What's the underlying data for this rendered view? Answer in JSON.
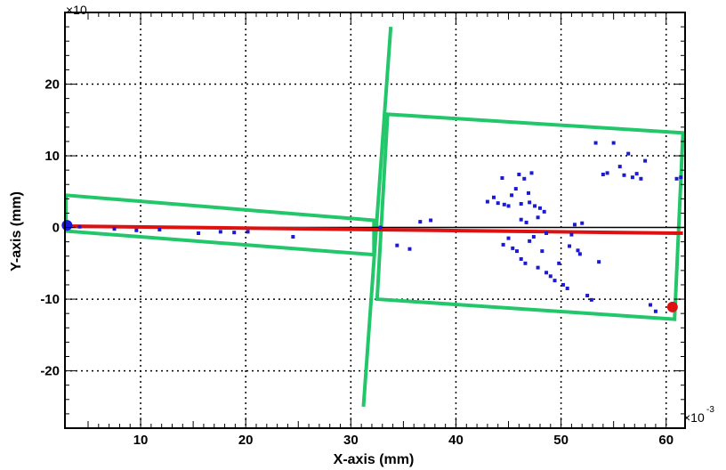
{
  "chart_data": {
    "type": "scatter",
    "xlabel": "X-axis (mm)",
    "ylabel": "Y-axis (mm)",
    "x_multiplier_label": "×10",
    "x_multiplier_exp": "-3",
    "y_multiplier_label": "×10",
    "xlim": [
      2.8,
      61.8
    ],
    "ylim": [
      -28.0,
      30.0
    ],
    "x_ticks": [
      10,
      20,
      30,
      40,
      50,
      60
    ],
    "y_ticks": [
      20,
      10,
      0,
      -10,
      -20
    ],
    "grid": true,
    "colors": {
      "points": "#1a1ad4",
      "track": "#dd1111",
      "baseline": "#000000",
      "detector": "#22c76a",
      "start_marker": "#1a1ad4",
      "end_marker": "#dd1111"
    },
    "baseline": {
      "y": 0
    },
    "track_line": {
      "x": [
        2.8,
        61.6
      ],
      "y": [
        0.2,
        -0.8
      ]
    },
    "start_point": {
      "x": 3.0,
      "y": 0.3
    },
    "end_point": {
      "x": 60.6,
      "y": -11.1
    },
    "detector_boxes": [
      {
        "x": [
          2.9,
          32.2,
          32.2,
          2.9
        ],
        "y": [
          4.5,
          1.0,
          -3.8,
          -0.5
        ]
      },
      {
        "x": [
          33.5,
          61.6,
          60.8,
          32.5
        ],
        "y": [
          15.8,
          13.2,
          -12.8,
          -10.0
        ]
      }
    ],
    "detector_plane": {
      "x": [
        33.8,
        31.2
      ],
      "y": [
        28.0,
        -25.0
      ]
    },
    "points": [
      [
        3.0,
        0.4
      ],
      [
        4.2,
        0.1
      ],
      [
        7.5,
        -0.2
      ],
      [
        9.6,
        -0.4
      ],
      [
        11.8,
        -0.3
      ],
      [
        15.5,
        -0.8
      ],
      [
        17.6,
        -0.6
      ],
      [
        18.9,
        -0.7
      ],
      [
        20.2,
        -0.6
      ],
      [
        24.5,
        -1.3
      ],
      [
        32.8,
        0.0
      ],
      [
        34.4,
        -2.5
      ],
      [
        35.6,
        -3.0
      ],
      [
        36.6,
        0.8
      ],
      [
        37.6,
        1.0
      ],
      [
        43.0,
        3.6
      ],
      [
        43.6,
        4.2
      ],
      [
        44.0,
        3.4
      ],
      [
        44.4,
        6.9
      ],
      [
        44.6,
        3.2
      ],
      [
        45.0,
        3.0
      ],
      [
        45.3,
        4.5
      ],
      [
        45.7,
        5.4
      ],
      [
        46.0,
        7.4
      ],
      [
        46.2,
        1.1
      ],
      [
        46.2,
        3.3
      ],
      [
        46.5,
        6.8
      ],
      [
        46.7,
        0.7
      ],
      [
        46.9,
        4.8
      ],
      [
        47.0,
        3.5
      ],
      [
        47.2,
        7.6
      ],
      [
        47.5,
        3.0
      ],
      [
        47.8,
        1.4
      ],
      [
        48.0,
        2.7
      ],
      [
        48.4,
        2.2
      ],
      [
        48.6,
        -0.8
      ],
      [
        44.5,
        -2.4
      ],
      [
        45.0,
        -1.5
      ],
      [
        45.4,
        -2.9
      ],
      [
        45.8,
        -3.3
      ],
      [
        46.2,
        -4.4
      ],
      [
        46.6,
        -5.0
      ],
      [
        47.0,
        -1.9
      ],
      [
        47.4,
        -1.3
      ],
      [
        47.8,
        -5.6
      ],
      [
        48.2,
        -3.3
      ],
      [
        48.6,
        -6.3
      ],
      [
        49.0,
        -6.8
      ],
      [
        49.4,
        -7.4
      ],
      [
        49.8,
        -5.0
      ],
      [
        50.2,
        -8.0
      ],
      [
        50.6,
        -8.5
      ],
      [
        50.8,
        -2.6
      ],
      [
        51.0,
        -1.0
      ],
      [
        51.3,
        0.4
      ],
      [
        51.6,
        -3.2
      ],
      [
        51.8,
        -3.7
      ],
      [
        52.0,
        0.6
      ],
      [
        52.5,
        -9.5
      ],
      [
        52.9,
        -10.1
      ],
      [
        53.3,
        11.8
      ],
      [
        53.6,
        -4.8
      ],
      [
        54.0,
        7.4
      ],
      [
        54.4,
        7.6
      ],
      [
        55.0,
        11.8
      ],
      [
        55.6,
        8.5
      ],
      [
        56.0,
        7.3
      ],
      [
        56.4,
        10.3
      ],
      [
        56.8,
        7.0
      ],
      [
        57.2,
        7.5
      ],
      [
        57.6,
        6.8
      ],
      [
        58.0,
        9.3
      ],
      [
        58.5,
        -10.8
      ],
      [
        59.0,
        -11.7
      ],
      [
        60.4,
        -11.3
      ],
      [
        61.0,
        6.8
      ],
      [
        61.4,
        7.0
      ]
    ]
  }
}
